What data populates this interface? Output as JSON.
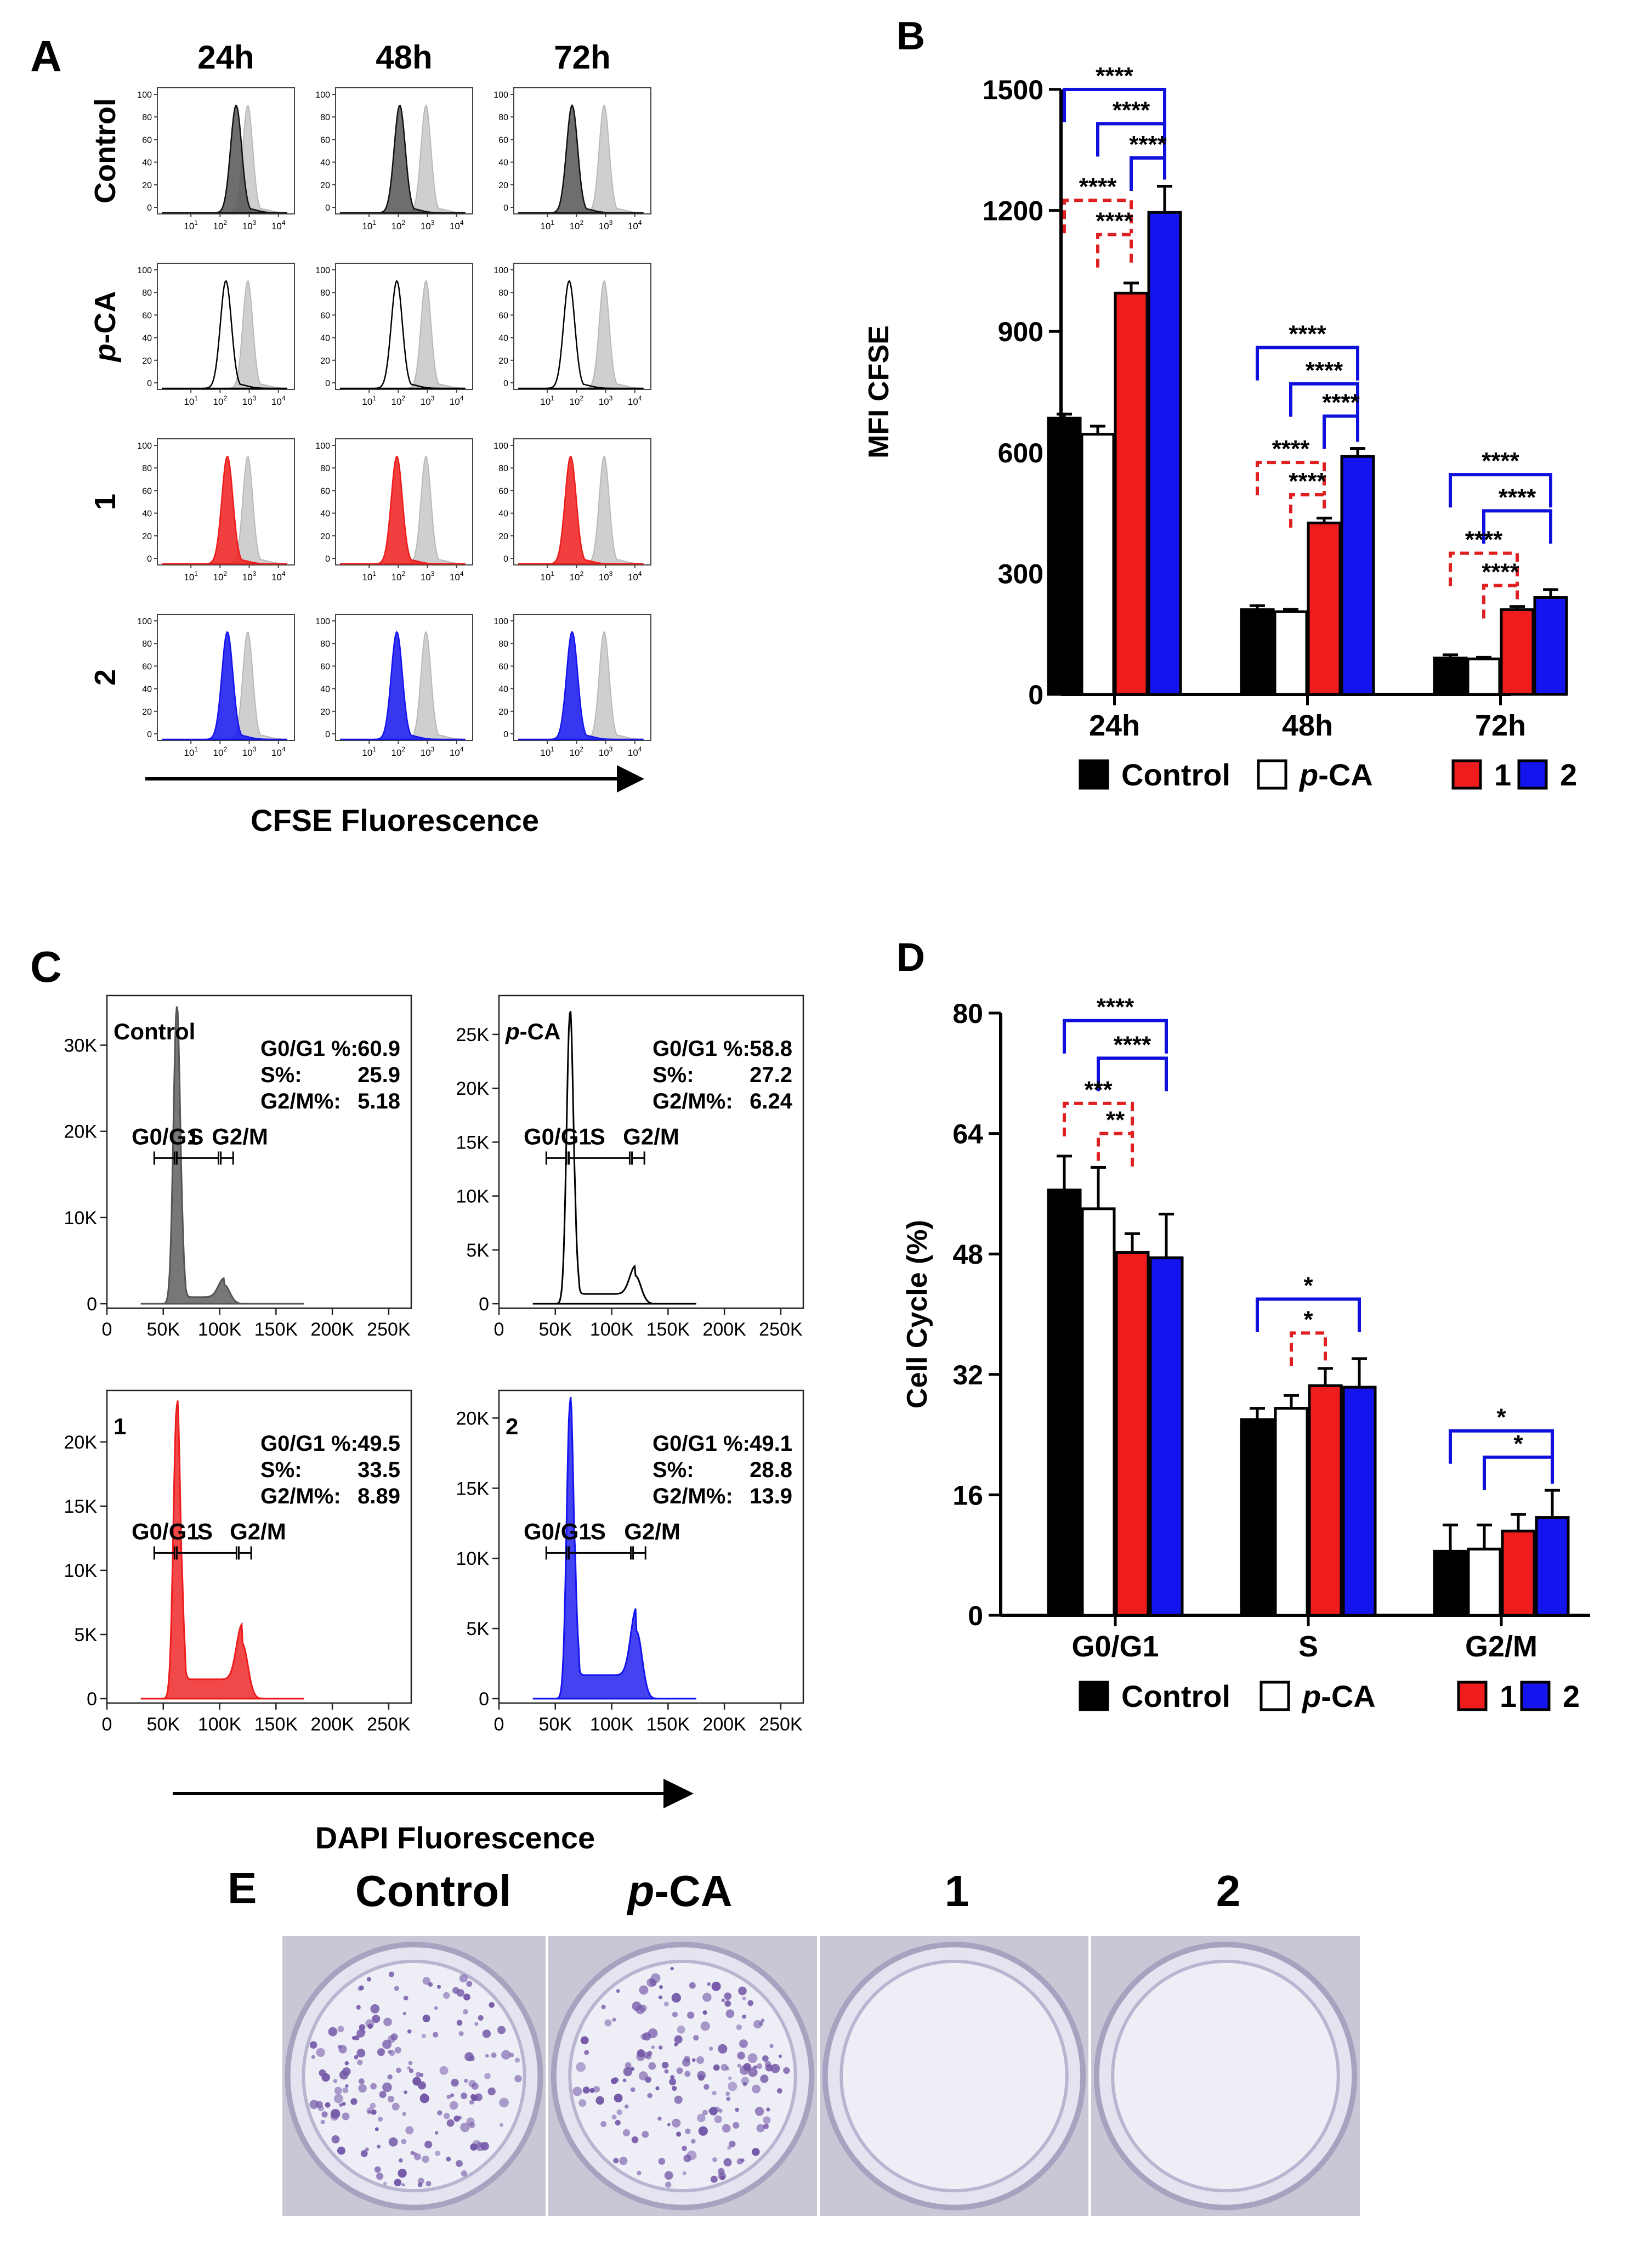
{
  "colors": {
    "control": "#000000",
    "pca": "#ffffff",
    "c1": "#ee1c1c",
    "c2": "#1414ee",
    "gray": "#cfcfcf",
    "bracket_blue": "#1010dd",
    "bracket_red": "#e02020"
  },
  "panels": {
    "A": "A",
    "B": "B",
    "C": "C",
    "D": "D",
    "E": "E"
  },
  "panelA": {
    "cols": [
      "24h",
      "48h",
      "72h"
    ],
    "rows": [
      {
        "label": "Control",
        "italic_part": "",
        "fill": "#555555",
        "outline_only": false
      },
      {
        "label": "-CA",
        "italic_part": "p",
        "fill": "#ffffff",
        "outline_only": true
      },
      {
        "label": "1",
        "italic_part": "",
        "fill": "#ee1c1c",
        "outline_only": false
      },
      {
        "label": "2",
        "italic_part": "",
        "fill": "#1414ee",
        "outline_only": false
      }
    ],
    "yticks": [
      "0",
      "20",
      "40",
      "60",
      "80",
      "100"
    ],
    "xtick_base": "10",
    "xtick_exps": [
      "1",
      "2",
      "3",
      "4"
    ],
    "xlabel": "CFSE Fluorescence",
    "peak_exp": [
      [
        2.55,
        2.05,
        1.85
      ],
      [
        2.2,
        1.95,
        1.75
      ],
      [
        2.25,
        1.95,
        1.8
      ],
      [
        2.25,
        1.95,
        1.85
      ]
    ],
    "ref_peak_exp": 2.95
  },
  "chart_data": [
    {
      "id": "B",
      "type": "bar",
      "ylabel": "MFI CFSE",
      "ylim": [
        0,
        1500
      ],
      "yticks": [
        "0",
        "300",
        "600",
        "900",
        "1200",
        "1500"
      ],
      "categories": [
        "24h",
        "48h",
        "72h"
      ],
      "series": [
        {
          "name": "Control",
          "values": [
            685,
            210,
            90
          ],
          "errors": [
            10,
            10,
            8
          ]
        },
        {
          "name": "-CA",
          "values": [
            645,
            205,
            88
          ],
          "errors": [
            20,
            6,
            4
          ]
        },
        {
          "name": "1",
          "values": [
            995,
            425,
            210
          ],
          "errors": [
            25,
            12,
            8
          ]
        },
        {
          "name": "2",
          "values": [
            1195,
            590,
            240
          ],
          "errors": [
            65,
            20,
            20
          ]
        }
      ],
      "significance": [
        {
          "group": 0,
          "from": 0,
          "to": 3,
          "level": 1500,
          "label": "****",
          "color": "blue"
        },
        {
          "group": 0,
          "from": 1,
          "to": 3,
          "level": 1415,
          "label": "****",
          "color": "blue"
        },
        {
          "group": 0,
          "from": 2,
          "to": 3,
          "level": 1330,
          "label": "****",
          "color": "blue"
        },
        {
          "group": 0,
          "from": 0,
          "to": 2,
          "level": 1225,
          "label": "****",
          "color": "red"
        },
        {
          "group": 0,
          "from": 1,
          "to": 2,
          "level": 1140,
          "label": "****",
          "color": "red"
        },
        {
          "group": 1,
          "from": 0,
          "to": 3,
          "level": 860,
          "label": "****",
          "color": "blue"
        },
        {
          "group": 1,
          "from": 1,
          "to": 3,
          "level": 770,
          "label": "****",
          "color": "blue"
        },
        {
          "group": 1,
          "from": 2,
          "to": 3,
          "level": 690,
          "label": "****",
          "color": "blue"
        },
        {
          "group": 1,
          "from": 0,
          "to": 2,
          "level": 575,
          "label": "****",
          "color": "red"
        },
        {
          "group": 1,
          "from": 1,
          "to": 2,
          "level": 495,
          "label": "****",
          "color": "red"
        },
        {
          "group": 2,
          "from": 0,
          "to": 3,
          "level": 545,
          "label": "****",
          "color": "blue"
        },
        {
          "group": 2,
          "from": 1,
          "to": 3,
          "level": 455,
          "label": "****",
          "color": "blue"
        },
        {
          "group": 2,
          "from": 0,
          "to": 2,
          "level": 350,
          "label": "****",
          "color": "red"
        },
        {
          "group": 2,
          "from": 1,
          "to": 2,
          "level": 270,
          "label": "****",
          "color": "red"
        }
      ]
    },
    {
      "id": "D",
      "type": "bar",
      "ylabel": "Cell Cycle (%)",
      "ylim": [
        0,
        80
      ],
      "yticks": [
        "0",
        "16",
        "32",
        "48",
        "64",
        "80"
      ],
      "categories": [
        "G0/G1",
        "S",
        "G2/M"
      ],
      "series": [
        {
          "name": "Control",
          "values": [
            56.5,
            26,
            8.5
          ],
          "errors": [
            4.5,
            1.5,
            3.5
          ]
        },
        {
          "name": "-CA",
          "values": [
            54,
            27.5,
            8.8
          ],
          "errors": [
            5.5,
            1.7,
            3.2
          ]
        },
        {
          "name": "1",
          "values": [
            48.2,
            30.5,
            11.2
          ],
          "errors": [
            2.5,
            2.3,
            2.2
          ]
        },
        {
          "name": "2",
          "values": [
            47.5,
            30.3,
            13
          ],
          "errors": [
            5.8,
            3.8,
            3.6
          ]
        }
      ],
      "significance": [
        {
          "group": 0,
          "from": 0,
          "to": 3,
          "level": 79,
          "label": "****",
          "color": "blue"
        },
        {
          "group": 0,
          "from": 1,
          "to": 3,
          "level": 74,
          "label": "****",
          "color": "blue"
        },
        {
          "group": 0,
          "from": 0,
          "to": 2,
          "level": 68,
          "label": "***",
          "color": "red"
        },
        {
          "group": 0,
          "from": 1,
          "to": 2,
          "level": 64,
          "label": "**",
          "color": "red"
        },
        {
          "group": 1,
          "from": 0,
          "to": 3,
          "level": 42,
          "label": "*",
          "color": "blue"
        },
        {
          "group": 1,
          "from": 1,
          "to": 2,
          "level": 37.5,
          "label": "*",
          "color": "red"
        },
        {
          "group": 2,
          "from": 0,
          "to": 3,
          "level": 24.5,
          "label": "*",
          "color": "blue"
        },
        {
          "group": 2,
          "from": 1,
          "to": 3,
          "level": 21,
          "label": "*",
          "color": "blue"
        }
      ]
    }
  ],
  "legend": [
    {
      "label": "Control",
      "italic_part": ""
    },
    {
      "label": "-CA",
      "italic_part": "p"
    },
    {
      "label": "1",
      "italic_part": ""
    },
    {
      "label": "2",
      "italic_part": ""
    }
  ],
  "panelC": {
    "xticks": [
      "0",
      "50K",
      "100K",
      "150K",
      "200K",
      "250K"
    ],
    "xlabel": "DAPI Fluorescence",
    "plots": [
      {
        "name": "Control",
        "italic_part": "",
        "color": "#555555",
        "fill": true,
        "yticks": [
          "0",
          "10K",
          "20K",
          "30K"
        ],
        "ymax": 35000,
        "peak": 34500,
        "stats": [
          [
            "G0/G1 %:",
            "60.9"
          ],
          [
            "S%:",
            "25.9"
          ],
          [
            "G2/M%:",
            "5.18"
          ]
        ],
        "g1": 62000,
        "g2": 104000,
        "g2h": 2200
      },
      {
        "name": "-CA",
        "italic_part": "p",
        "color": "#000000",
        "fill": false,
        "yticks": [
          "0",
          "5K",
          "10K",
          "15K",
          "20K",
          "25K"
        ],
        "ymax": 28000,
        "peak": 27000,
        "stats": [
          [
            "G0/G1 %:",
            "58.8"
          ],
          [
            "S%:",
            "27.2"
          ],
          [
            "G2/M%:",
            "6.24"
          ]
        ],
        "g1": 63000,
        "g2": 121000,
        "g2h": 2600
      },
      {
        "name": "1",
        "italic_part": "",
        "color": "#ee1c1c",
        "fill": true,
        "yticks": [
          "0",
          "5K",
          "10K",
          "15K",
          "20K"
        ],
        "ymax": 23500,
        "peak": 22800,
        "stats": [
          [
            "G0/G1 %:",
            "49.5"
          ],
          [
            "S%:",
            "33.5"
          ],
          [
            "G2/M%:",
            "8.89"
          ]
        ],
        "g1": 62000,
        "g2": 120000,
        "g2h": 4300
      },
      {
        "name": "2",
        "italic_part": "",
        "color": "#1414ee",
        "fill": true,
        "yticks": [
          "0",
          "5K",
          "10K",
          "15K",
          "20K"
        ],
        "ymax": 21500,
        "peak": 21000,
        "stats": [
          [
            "G0/G1 %:",
            "49.1"
          ],
          [
            "S%:",
            "28.8"
          ],
          [
            "G2/M%:",
            "13.9"
          ]
        ],
        "g1": 63000,
        "g2": 122000,
        "g2h": 4800
      }
    ],
    "gate_labels": [
      "G0/G1",
      "S",
      "G2/M"
    ]
  },
  "panelE": {
    "labels": [
      {
        "label": "Control",
        "italic_part": ""
      },
      {
        "label": "-CA",
        "italic_part": "p"
      },
      {
        "label": "1",
        "italic_part": ""
      },
      {
        "label": "2",
        "italic_part": ""
      }
    ],
    "colonies": [
      "dense",
      "dense",
      "none",
      "none"
    ]
  }
}
